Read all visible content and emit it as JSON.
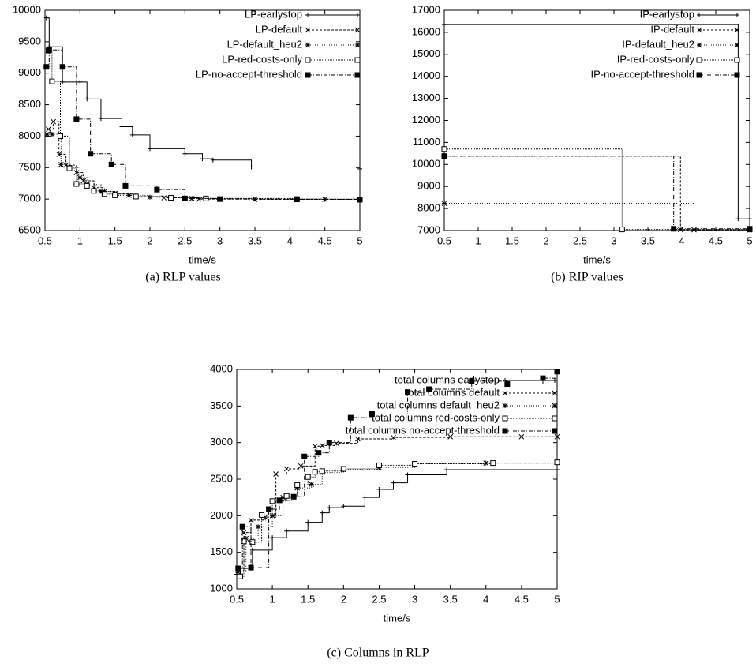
{
  "chart_data": [
    {
      "type": "step",
      "caption": "(a) RLP values",
      "xlabel": "time/s",
      "xlim": [
        0.5,
        5
      ],
      "xticks": [
        0.5,
        1,
        1.5,
        2,
        2.5,
        3,
        3.5,
        4,
        4.5,
        5
      ],
      "ylim": [
        6500,
        10000
      ],
      "yticks": [
        6500,
        7000,
        7500,
        8000,
        8500,
        9000,
        9500,
        10000
      ],
      "grid": false,
      "legend": "top-right",
      "series": [
        {
          "name": "LP-earlystop",
          "color": "#000000",
          "marker": "plus",
          "dash": "none",
          "x": [
            0.52,
            0.56,
            0.75,
            1.0,
            1.1,
            1.3,
            1.6,
            1.75,
            2.0,
            2.5,
            2.75,
            2.9,
            3.45,
            5.0
          ],
          "values": [
            9880,
            9420,
            8860,
            8860,
            8590,
            8280,
            8150,
            8020,
            7800,
            7720,
            7640,
            7620,
            7510,
            7480
          ]
        },
        {
          "name": "LP-default",
          "color": "#000000",
          "marker": "cross",
          "dash": "3,2",
          "x": [
            0.55,
            0.62,
            0.7,
            0.8,
            0.95,
            1.05,
            1.2,
            1.35,
            1.5,
            1.8,
            2.2,
            2.7,
            3.5,
            5.0
          ],
          "values": [
            8110,
            8230,
            7710,
            7540,
            7420,
            7290,
            7180,
            7120,
            7080,
            7040,
            7020,
            7000,
            6995,
            6990
          ]
        },
        {
          "name": "LP-default_heu2",
          "color": "#000000",
          "marker": "star",
          "dash": "1,2",
          "x": [
            0.53,
            0.6,
            0.73,
            0.85,
            1.0,
            1.1,
            1.3,
            1.5,
            1.7,
            2.0,
            2.6,
            3.5,
            4.5,
            5.0
          ],
          "values": [
            8030,
            8030,
            7550,
            7500,
            7340,
            7230,
            7120,
            7090,
            7060,
            7030,
            7010,
            7000,
            6995,
            6990
          ]
        },
        {
          "name": "LP-red-costs-only",
          "color": "#000000",
          "marker": "square-open",
          "dash": "1,1",
          "x": [
            0.55,
            0.6,
            0.72,
            0.85,
            0.95,
            1.1,
            1.2,
            1.35,
            1.5,
            1.8,
            2.3,
            2.8,
            4.1,
            5.0
          ],
          "values": [
            9360,
            8870,
            8000,
            7490,
            7240,
            7210,
            7130,
            7080,
            7060,
            7040,
            7020,
            7010,
            7000,
            6995
          ]
        },
        {
          "name": "LP-no-accept-threshold",
          "color": "#000000",
          "marker": "square-filled",
          "dash": "5,2,1,2",
          "x": [
            0.52,
            0.56,
            0.75,
            0.95,
            1.15,
            1.45,
            1.65,
            2.1,
            2.5,
            3.0,
            4.1,
            5.0
          ],
          "values": [
            9100,
            9370,
            9100,
            8270,
            7720,
            7550,
            7210,
            7150,
            7010,
            7000,
            6995,
            6990
          ]
        }
      ]
    },
    {
      "type": "step",
      "caption": "(b) RIP values",
      "xlabel": "time/s",
      "xlim": [
        0.5,
        5
      ],
      "xticks": [
        0.5,
        1,
        1.5,
        2,
        2.5,
        3,
        3.5,
        4,
        4.5,
        5
      ],
      "ylim": [
        7000,
        17000
      ],
      "yticks": [
        7000,
        8000,
        9000,
        10000,
        11000,
        12000,
        13000,
        14000,
        15000,
        16000,
        17000
      ],
      "grid": false,
      "legend": "top-right",
      "series": [
        {
          "name": "IP-earlystop",
          "color": "#000000",
          "marker": "plus",
          "dash": "none",
          "x": [
            0.5,
            4.83,
            5.0
          ],
          "values": [
            16350,
            7530,
            7530
          ]
        },
        {
          "name": "IP-default",
          "color": "#000000",
          "marker": "cross",
          "dash": "3,2",
          "x": [
            0.5,
            3.98,
            5.0
          ],
          "values": [
            10380,
            7040,
            7040
          ]
        },
        {
          "name": "IP-default_heu2",
          "color": "#000000",
          "marker": "star",
          "dash": "1,2",
          "x": [
            0.5,
            4.18,
            5.0
          ],
          "values": [
            8230,
            7030,
            7030
          ]
        },
        {
          "name": "IP-red-costs-only",
          "color": "#000000",
          "marker": "square-open",
          "dash": "1,1",
          "x": [
            0.5,
            3.12,
            5.0
          ],
          "values": [
            10700,
            7050,
            7050
          ]
        },
        {
          "name": "IP-no-accept-threshold",
          "color": "#000000",
          "marker": "square-filled",
          "dash": "5,2,1,2",
          "x": [
            0.5,
            3.88,
            5.0
          ],
          "values": [
            10380,
            7080,
            7080
          ]
        }
      ]
    },
    {
      "type": "step",
      "caption": "(c) Columns in RLP",
      "xlabel": "time/s",
      "xlim": [
        0.5,
        5
      ],
      "xticks": [
        0.5,
        1,
        1.5,
        2,
        2.5,
        3,
        3.5,
        4,
        4.5,
        5
      ],
      "ylim": [
        1000,
        4000
      ],
      "yticks": [
        1000,
        1500,
        2000,
        2500,
        3000,
        3500,
        4000
      ],
      "grid": false,
      "legend": "top-right",
      "series": [
        {
          "name": "total columns earlystop",
          "color": "#000000",
          "marker": "plus",
          "dash": "none",
          "x": [
            0.5,
            0.55,
            0.72,
            1.0,
            1.2,
            1.5,
            1.7,
            1.8,
            2.0,
            2.3,
            2.5,
            2.7,
            2.9,
            3.45,
            5.0
          ],
          "values": [
            1200,
            1280,
            1530,
            1700,
            1790,
            1910,
            2040,
            2110,
            2130,
            2250,
            2360,
            2450,
            2560,
            2630,
            2630
          ]
        },
        {
          "name": "total columns default",
          "color": "#000000",
          "marker": "cross",
          "dash": "3,2",
          "x": [
            0.52,
            0.6,
            0.7,
            0.9,
            1.05,
            1.2,
            1.4,
            1.6,
            1.7,
            1.9,
            2.2,
            2.7,
            3.5,
            4.5,
            5.0
          ],
          "values": [
            1230,
            1770,
            1940,
            1980,
            2570,
            2640,
            2680,
            2950,
            2960,
            2990,
            3050,
            3070,
            3080,
            3080,
            3080
          ]
        },
        {
          "name": "total columns default_heu2",
          "color": "#000000",
          "marker": "star",
          "dash": "1,2",
          "x": [
            0.52,
            0.63,
            0.8,
            1.0,
            1.15,
            1.35,
            1.55,
            1.7,
            2.0,
            2.5,
            3.0,
            4.0,
            5.0
          ],
          "values": [
            1250,
            1690,
            1850,
            2000,
            2250,
            2380,
            2430,
            2590,
            2630,
            2660,
            2710,
            2720,
            2730
          ]
        },
        {
          "name": "total columns red-costs-only",
          "color": "#000000",
          "marker": "square-open",
          "dash": "1,1",
          "x": [
            0.55,
            0.6,
            0.72,
            0.85,
            1.0,
            1.2,
            1.35,
            1.5,
            1.6,
            1.7,
            2.0,
            2.5,
            3.0,
            4.1,
            5.0
          ],
          "values": [
            1170,
            1650,
            1640,
            2010,
            2200,
            2270,
            2420,
            2530,
            2600,
            2610,
            2640,
            2690,
            2710,
            2720,
            2730
          ]
        },
        {
          "name": "total columns no-accept-threshold",
          "color": "#000000",
          "marker": "square-filled",
          "dash": "5,2,1,2",
          "x": [
            0.52,
            0.58,
            0.7,
            0.95,
            1.1,
            1.3,
            1.45,
            1.65,
            1.8,
            2.1,
            2.4,
            2.9,
            3.2,
            3.8,
            4.3,
            4.8,
            5.0
          ],
          "values": [
            1280,
            1850,
            1290,
            2090,
            2210,
            2260,
            2810,
            2860,
            3000,
            3340,
            3390,
            3690,
            3730,
            3840,
            3800,
            3880,
            3970
          ]
        }
      ]
    }
  ]
}
